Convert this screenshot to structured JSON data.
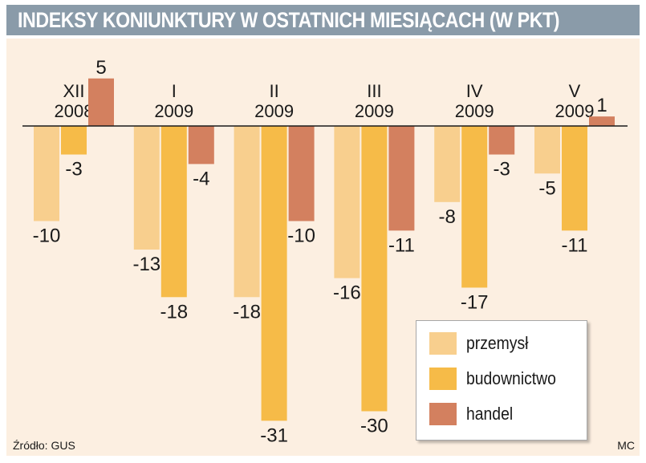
{
  "title": "INDEKSY KONIUNKTURY W OSTATNICH MIESIĄCACH (W PKT)",
  "source": "Źródło: GUS",
  "credit": "MC",
  "colors": {
    "przemysl": "#f8cf8e",
    "budownictwo": "#f6bb48",
    "handel": "#d3805f"
  },
  "chart_data": {
    "type": "bar",
    "title": "INDEKSY KONIUNKTURY W OSTATNICH MIESIĄCACH (W PKT)",
    "categories": [
      {
        "month": "XII",
        "year": "2008"
      },
      {
        "month": "I",
        "year": "2009"
      },
      {
        "month": "II",
        "year": "2009"
      },
      {
        "month": "III",
        "year": "2009"
      },
      {
        "month": "IV",
        "year": "2009"
      },
      {
        "month": "V",
        "year": "2009"
      }
    ],
    "series": [
      {
        "name": "przemysł",
        "values": [
          -10,
          -13,
          -18,
          -16,
          -8,
          -5
        ]
      },
      {
        "name": "budownictwo",
        "values": [
          -3,
          -18,
          -31,
          -30,
          -17,
          -11
        ]
      },
      {
        "name": "handel",
        "values": [
          5,
          -4,
          -10,
          -11,
          -3,
          1
        ]
      }
    ],
    "ylim": [
      -33,
      6
    ],
    "grid": false,
    "legend": "bottom-right"
  },
  "legend": {
    "items": [
      {
        "label": "przemysł"
      },
      {
        "label": "budownictwo"
      },
      {
        "label": "handel"
      }
    ]
  }
}
